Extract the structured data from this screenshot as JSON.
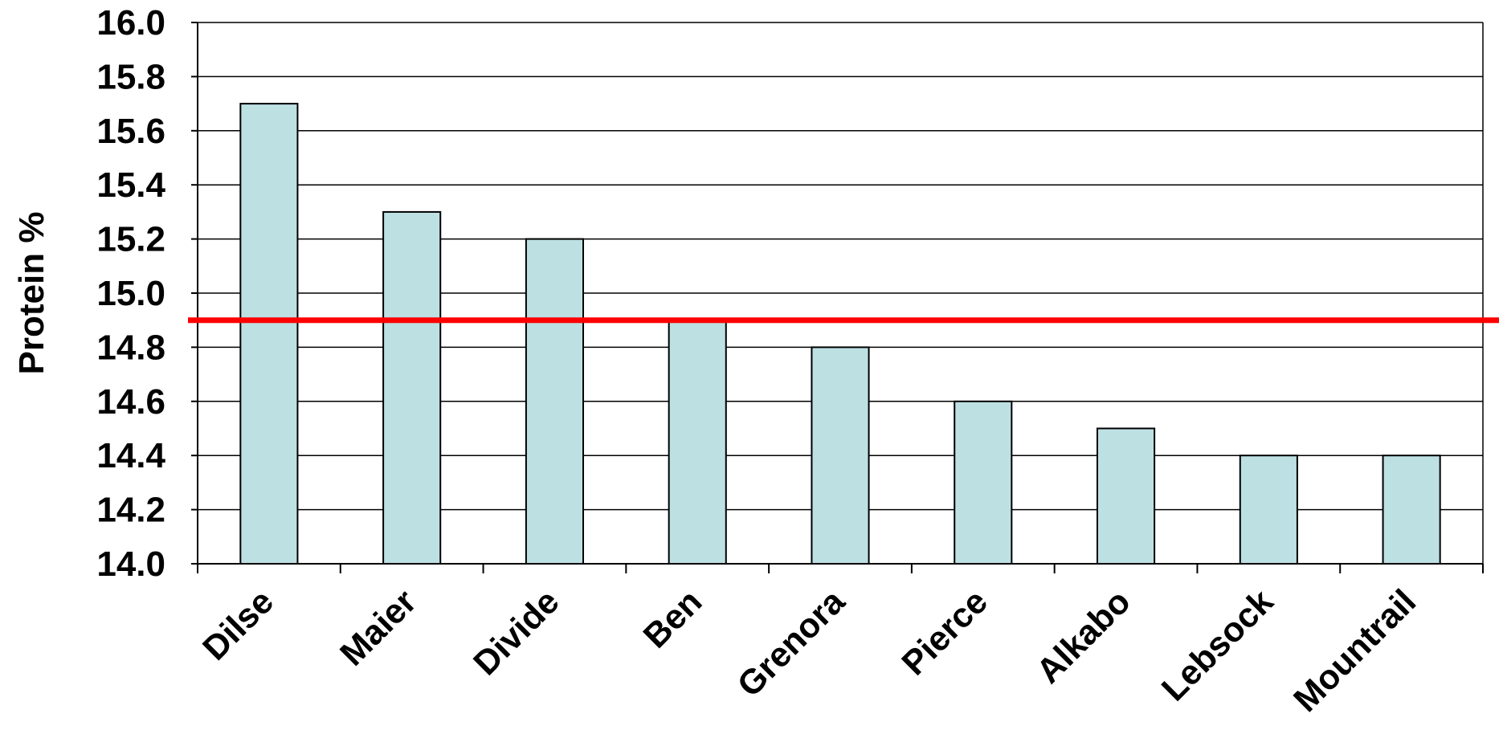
{
  "chart_data": {
    "type": "bar",
    "title": "",
    "xlabel": "",
    "ylabel": "Protein %",
    "ylim": [
      14.0,
      16.0
    ],
    "yticks": [
      "14.0",
      "14.2",
      "14.4",
      "14.6",
      "14.8",
      "15.0",
      "15.2",
      "15.4",
      "15.6",
      "15.8",
      "16.0"
    ],
    "grid": true,
    "categories": [
      "Dilse",
      "Maier",
      "Divide",
      "Ben",
      "Grenora",
      "Pierce",
      "Alkabo",
      "Lebsock",
      "Mountrail"
    ],
    "values": [
      15.7,
      15.3,
      15.2,
      14.9,
      14.8,
      14.6,
      14.5,
      14.4,
      14.4
    ],
    "reference_line": {
      "value": 14.9,
      "color": "#ff0000"
    },
    "colors": {
      "bar_fill": "#bde0e3",
      "bar_stroke": "#000000",
      "grid": "#000000"
    }
  }
}
